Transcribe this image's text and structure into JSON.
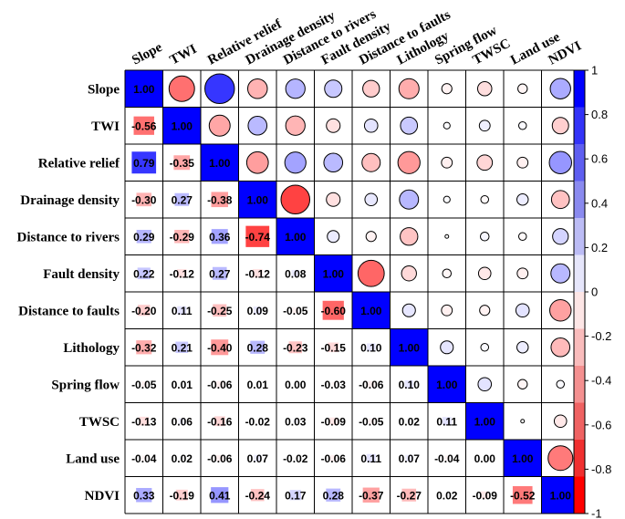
{
  "chart_data": {
    "type": "heatmap",
    "style": "correlogram: upper triangle circles, lower triangle numbers with shaded squares",
    "variables": [
      "Slope",
      "TWI",
      "Relative relief",
      "Drainage density",
      "Distance to rivers",
      "Fault density",
      "Distance to faults",
      "Lithology",
      "Spring flow",
      "TWSC",
      "Land use",
      "NDVI"
    ],
    "matrix": [
      [
        1.0,
        -0.56,
        0.79,
        -0.3,
        0.29,
        0.22,
        -0.2,
        -0.32,
        -0.05,
        -0.13,
        -0.04,
        0.33
      ],
      [
        -0.56,
        1.0,
        -0.35,
        0.27,
        -0.29,
        -0.12,
        0.11,
        0.21,
        0.01,
        0.06,
        0.02,
        -0.19
      ],
      [
        0.79,
        -0.35,
        1.0,
        -0.38,
        0.36,
        0.27,
        -0.25,
        -0.4,
        -0.06,
        -0.16,
        -0.06,
        0.41
      ],
      [
        -0.3,
        0.27,
        -0.38,
        1.0,
        -0.74,
        -0.12,
        0.09,
        0.28,
        0.01,
        -0.02,
        0.07,
        -0.24
      ],
      [
        0.29,
        -0.29,
        0.36,
        -0.74,
        1.0,
        0.08,
        -0.05,
        -0.23,
        0.0,
        0.03,
        -0.02,
        0.17
      ],
      [
        0.22,
        -0.12,
        0.27,
        -0.12,
        0.08,
        1.0,
        -0.6,
        -0.15,
        -0.03,
        -0.09,
        -0.06,
        0.28
      ],
      [
        -0.2,
        0.11,
        -0.25,
        0.09,
        -0.05,
        -0.6,
        1.0,
        0.1,
        -0.06,
        -0.05,
        0.11,
        -0.37
      ],
      [
        -0.32,
        0.21,
        -0.4,
        0.28,
        -0.23,
        -0.15,
        0.1,
        1.0,
        0.1,
        0.02,
        0.07,
        -0.27
      ],
      [
        -0.05,
        0.01,
        -0.06,
        0.01,
        0.0,
        -0.03,
        -0.06,
        0.1,
        1.0,
        0.11,
        -0.04,
        0.02
      ],
      [
        -0.13,
        0.06,
        -0.16,
        -0.02,
        0.03,
        -0.09,
        -0.05,
        0.02,
        0.11,
        1.0,
        0.0,
        -0.09
      ],
      [
        -0.04,
        0.02,
        -0.06,
        0.07,
        -0.02,
        -0.06,
        0.11,
        0.07,
        -0.04,
        0.0,
        1.0,
        -0.52
      ],
      [
        0.33,
        -0.19,
        0.41,
        -0.24,
        0.17,
        0.28,
        -0.37,
        -0.27,
        0.02,
        -0.09,
        -0.52,
        1.0
      ]
    ],
    "colorbar": {
      "range": [
        -1,
        1
      ],
      "ticks": [
        "1",
        "0.8",
        "0.6",
        "0.4",
        "0.2",
        "0",
        "-0.2",
        "-0.4",
        "-0.6",
        "-0.8",
        "-1"
      ],
      "bands": [
        "#0000ff",
        "#3333f8",
        "#5e5ef0",
        "#8a8aef",
        "#bcbcf5",
        "#e6e6fb",
        "#fde6e6",
        "#f9bcbc",
        "#f49090",
        "#ef6262",
        "#f03030",
        "#ff0000"
      ]
    },
    "colors": {
      "negative": "#ff0000",
      "positive": "#0000ff",
      "grid": "#000000"
    }
  }
}
